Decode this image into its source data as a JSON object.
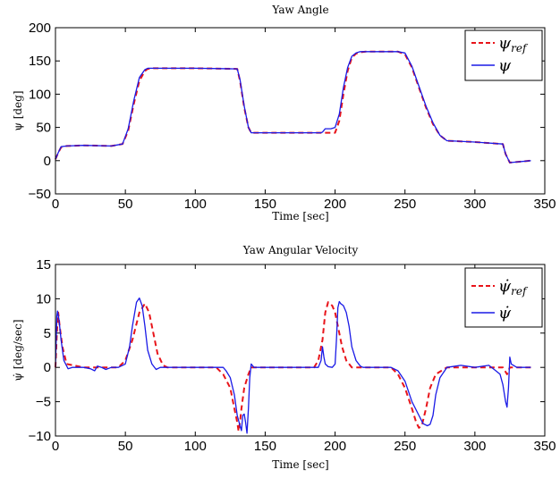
{
  "chart_data": [
    {
      "type": "line",
      "title": "Yaw Angle",
      "xlabel": "Time [sec]",
      "ylabel": "ψ [deg]",
      "xlim": [
        0,
        350
      ],
      "ylim": [
        -50,
        200
      ],
      "xticks": [
        0,
        50,
        100,
        150,
        200,
        250,
        300,
        350
      ],
      "yticks": [
        -50,
        0,
        50,
        100,
        150,
        200
      ],
      "xtick_labels": [
        "0",
        "50",
        "100",
        "150",
        "200",
        "250",
        "300",
        "350"
      ],
      "ytick_labels": [
        "−50",
        "0",
        "50",
        "100",
        "150",
        "200"
      ],
      "legend": {
        "position": "top-right",
        "entries": [
          {
            "symbol": "ψ",
            "subscript": "ref",
            "color": "#e8141a",
            "style": "dashed"
          },
          {
            "symbol": "ψ",
            "subscript": "",
            "color": "#1a1ae6",
            "style": "solid"
          }
        ]
      },
      "series": [
        {
          "color": "#e8141a",
          "style": "dashed",
          "x": [
            0,
            2,
            4,
            8,
            20,
            40,
            48,
            52,
            56,
            60,
            64,
            66,
            70,
            100,
            130,
            132,
            135,
            138,
            140,
            190,
            197,
            200,
            203,
            206,
            209,
            212,
            215,
            218,
            222,
            245,
            250,
            255,
            260,
            265,
            270,
            275,
            280,
            300,
            320,
            322,
            325,
            340
          ],
          "y": [
            2,
            12,
            20,
            22,
            23,
            22,
            25,
            45,
            85,
            120,
            135,
            138,
            139,
            139,
            138,
            120,
            80,
            50,
            42,
            42,
            42,
            42,
            60,
            100,
            135,
            155,
            161,
            163,
            164,
            164,
            160,
            140,
            110,
            80,
            55,
            38,
            30,
            28,
            25,
            10,
            -3,
            0
          ]
        },
        {
          "color": "#1a1ae6",
          "style": "solid",
          "x": [
            0,
            2,
            4,
            8,
            20,
            40,
            48,
            52,
            56,
            60,
            64,
            66,
            70,
            100,
            130,
            132,
            135,
            138,
            140,
            190,
            191,
            193,
            197,
            200,
            203,
            206,
            209,
            212,
            215,
            218,
            222,
            245,
            250,
            255,
            260,
            265,
            270,
            275,
            280,
            300,
            320,
            322,
            325,
            340
          ],
          "y": [
            2,
            12,
            21,
            22,
            23,
            22,
            25,
            48,
            90,
            125,
            137,
            139,
            139,
            139,
            138,
            122,
            82,
            50,
            42,
            42,
            43,
            48,
            48,
            50,
            70,
            110,
            140,
            157,
            162,
            164,
            164,
            164,
            162,
            142,
            112,
            82,
            57,
            38,
            30,
            28,
            25,
            10,
            -3,
            0
          ]
        }
      ]
    },
    {
      "type": "line",
      "title": "Yaw Angular Velocity",
      "xlabel": "Time [sec]",
      "ylabel": "ψ̇ [deg/sec]",
      "xlim": [
        0,
        350
      ],
      "ylim": [
        -10,
        15
      ],
      "xticks": [
        0,
        50,
        100,
        150,
        200,
        250,
        300,
        350
      ],
      "yticks": [
        -10,
        -5,
        0,
        5,
        10,
        15
      ],
      "xtick_labels": [
        "0",
        "50",
        "100",
        "150",
        "200",
        "250",
        "300",
        "350"
      ],
      "ytick_labels": [
        "−10",
        "−5",
        "0",
        "5",
        "10",
        "15"
      ],
      "legend": {
        "position": "top-right",
        "entries": [
          {
            "symbol": "ψ̇",
            "subscript": "ref",
            "color": "#e8141a",
            "style": "dashed"
          },
          {
            "symbol": "ψ̇",
            "subscript": "",
            "color": "#1a1ae6",
            "style": "solid"
          }
        ]
      },
      "series": [
        {
          "color": "#e8141a",
          "style": "dashed",
          "x": [
            0,
            1,
            2,
            3,
            5,
            8,
            20,
            45,
            50,
            55,
            60,
            64,
            67,
            70,
            73,
            77,
            80,
            115,
            120,
            125,
            128,
            130,
            131,
            132,
            133,
            135,
            138,
            140,
            185,
            188,
            191,
            193,
            195,
            198,
            200,
            202,
            205,
            208,
            212,
            240,
            245,
            250,
            255,
            258,
            260,
            262,
            265,
            268,
            272,
            280,
            285,
            300,
            320,
            323,
            325,
            340
          ],
          "y": [
            0,
            5,
            8,
            6,
            3,
            0.5,
            0,
            0,
            1,
            4,
            8,
            9.3,
            8,
            5,
            2,
            0.3,
            0,
            0,
            -1,
            -3,
            -6,
            -8,
            -9.3,
            -8,
            -6,
            -3,
            -1,
            0,
            0,
            1,
            4,
            8,
            9.5,
            9,
            8,
            6,
            3,
            1,
            0,
            0,
            -1,
            -3,
            -6,
            -8,
            -8.8,
            -8.5,
            -6,
            -3,
            -1,
            0,
            0,
            0,
            0,
            -1,
            0,
            0
          ]
        },
        {
          "color": "#1a1ae6",
          "style": "solid",
          "x": [
            0,
            0.5,
            1,
            1.5,
            2.5,
            4,
            6,
            9,
            12,
            20,
            25,
            28,
            30,
            33,
            36,
            40,
            45,
            50,
            53,
            55,
            58,
            60,
            62,
            64,
            66,
            69,
            72,
            75,
            80,
            100,
            120,
            122,
            125,
            128,
            130,
            132,
            133,
            134,
            135,
            136,
            137,
            138,
            139,
            140,
            142,
            145,
            150,
            180,
            188,
            190,
            191,
            192,
            193,
            195,
            198,
            200,
            201,
            202,
            203,
            204,
            206,
            208,
            210,
            212,
            215,
            218,
            220,
            240,
            245,
            250,
            255,
            260,
            263,
            266,
            268,
            270,
            272,
            275,
            280,
            290,
            300,
            310,
            315,
            318,
            320,
            322,
            323,
            324,
            325,
            326,
            330,
            340
          ],
          "y": [
            0,
            4,
            7.5,
            8.2,
            7,
            4,
            1,
            -0.2,
            0,
            0,
            -0.2,
            -0.5,
            0.2,
            0,
            -0.3,
            0,
            0,
            0.5,
            3,
            6,
            9.5,
            10.1,
            9,
            6,
            2.5,
            0.5,
            -0.3,
            0,
            0,
            0,
            0,
            -0.5,
            -1.5,
            -4,
            -7,
            -8.5,
            -9.2,
            -7,
            -6.8,
            -8,
            -9.6,
            -6,
            -1.5,
            0.5,
            0,
            0,
            0,
            0,
            0,
            1,
            3,
            1.5,
            0.5,
            0.1,
            0,
            0.5,
            4,
            8.7,
            9.6,
            9.3,
            9,
            8,
            6,
            3,
            1,
            0.2,
            0,
            0,
            -0.5,
            -2,
            -5,
            -7,
            -8.2,
            -8.5,
            -8.3,
            -7,
            -4,
            -1.5,
            0,
            0.3,
            0,
            0.3,
            -0.5,
            -1,
            -2.5,
            -5,
            -5.8,
            -3,
            1.5,
            0.5,
            0,
            0
          ]
        }
      ]
    }
  ]
}
